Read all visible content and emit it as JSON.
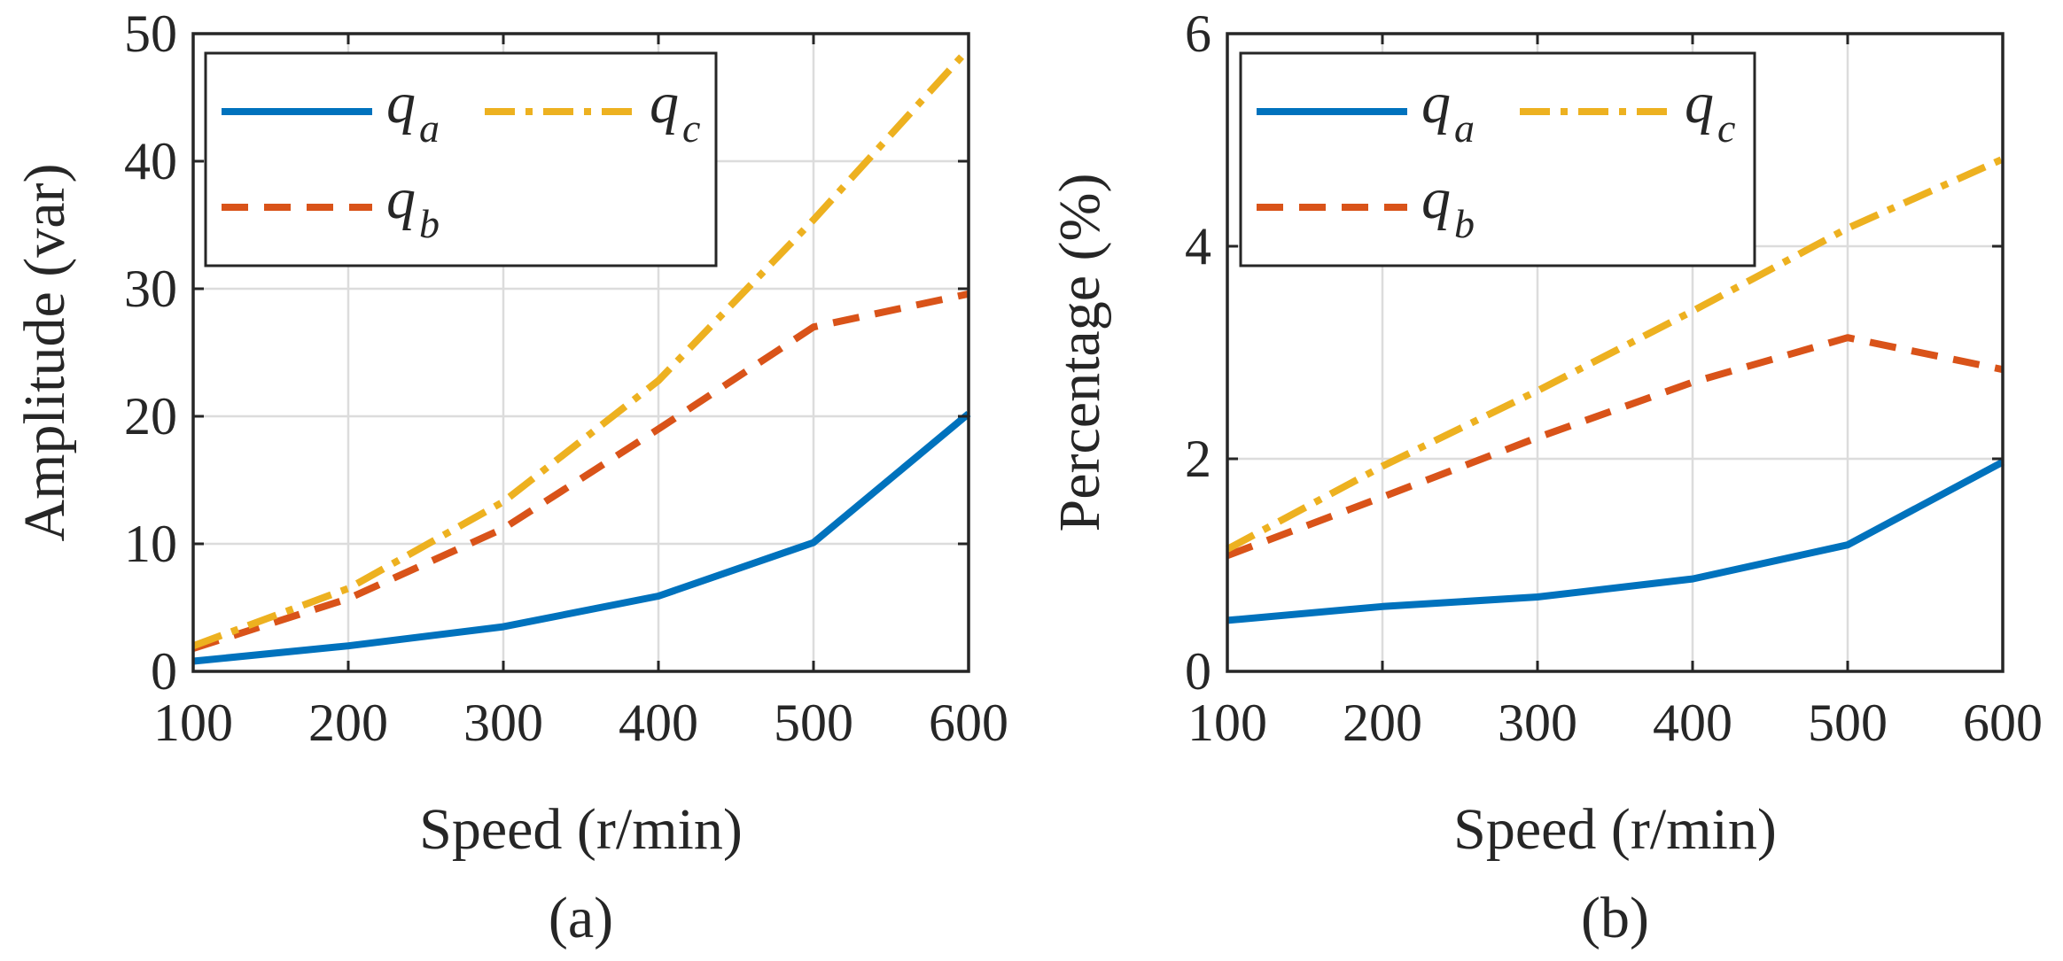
{
  "chart_data": [
    {
      "type": "line",
      "caption": "(a)",
      "xlabel": "Speed (r/min)",
      "ylabel": "Amplitude (var)",
      "x": [
        100,
        200,
        300,
        400,
        500,
        600
      ],
      "xlim": [
        100,
        600
      ],
      "ylim": [
        0,
        50
      ],
      "xticks": [
        "100",
        "200",
        "300",
        "400",
        "500",
        "600"
      ],
      "yticks": [
        "0",
        "10",
        "20",
        "30",
        "40",
        "50"
      ],
      "grid": true,
      "legend_placement": "top-left",
      "series": [
        {
          "name": "q",
          "sub": "a",
          "color": "#0072BD",
          "dash": "solid",
          "values": [
            0.8,
            2.0,
            3.5,
            5.9,
            10.1,
            20.2
          ]
        },
        {
          "name": "q",
          "sub": "b",
          "color": "#D95319",
          "dash": "dashed",
          "values": [
            1.8,
            5.7,
            11.2,
            19.0,
            27.0,
            29.6
          ]
        },
        {
          "name": "q",
          "sub": "c",
          "color": "#EDB120",
          "dash": "dashdot",
          "values": [
            2.0,
            6.5,
            13.3,
            22.8,
            35.4,
            48.8
          ]
        }
      ]
    },
    {
      "type": "line",
      "caption": "(b)",
      "xlabel": "Speed (r/min)",
      "ylabel": "Percentage (%)",
      "x": [
        100,
        200,
        300,
        400,
        500,
        600
      ],
      "xlim": [
        100,
        600
      ],
      "ylim": [
        0,
        6
      ],
      "xticks": [
        "100",
        "200",
        "300",
        "400",
        "500",
        "600"
      ],
      "yticks": [
        "0",
        "2",
        "4",
        "6"
      ],
      "grid": true,
      "legend_placement": "top-left",
      "series": [
        {
          "name": "q",
          "sub": "a",
          "color": "#0072BD",
          "dash": "solid",
          "values": [
            0.48,
            0.61,
            0.7,
            0.87,
            1.19,
            1.97
          ]
        },
        {
          "name": "q",
          "sub": "b",
          "color": "#D95319",
          "dash": "dashed",
          "values": [
            1.09,
            1.64,
            2.2,
            2.72,
            3.14,
            2.84
          ]
        },
        {
          "name": "q",
          "sub": "c",
          "color": "#EDB120",
          "dash": "dashdot",
          "values": [
            1.15,
            1.93,
            2.64,
            3.39,
            4.17,
            4.82
          ]
        }
      ]
    }
  ]
}
